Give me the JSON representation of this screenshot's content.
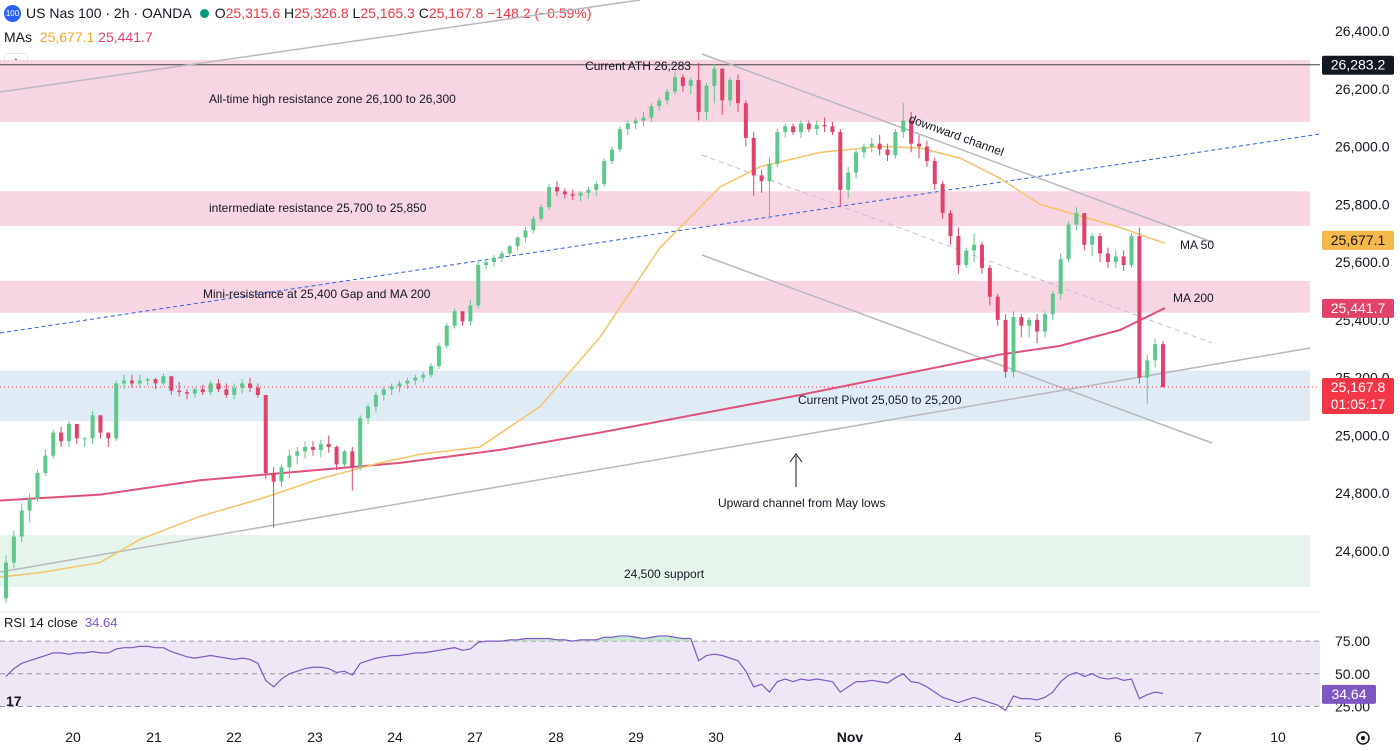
{
  "header": {
    "badge": "100",
    "symbol": "US Nas 100 · 2h · OANDA",
    "o_label": "O",
    "o_value": "25,315.6",
    "h_label": "H",
    "h_value": "25,326.8",
    "l_label": "L",
    "l_value": "25,165.3",
    "c_label": "C",
    "c_value": "25,167.8",
    "change": "−148.2 (−0.59%)",
    "mas_label": "MAs",
    "ma50_value": "25,677.1",
    "ma200_value": "25,441.7",
    "collapse_icon": "chevron-up-icon"
  },
  "rsi_header": {
    "label": "RSI 14 close",
    "value": "34.64"
  },
  "colors": {
    "up": "#26a69a",
    "up_body": "#5ec88c",
    "down": "#e0426a",
    "ma50": "#f5c469",
    "ma200": "#e0527a",
    "pink_zone": "#f7d5e2",
    "blue_zone": "#dfecf6",
    "green_zone": "#e6f5ec",
    "rsi": "#7e57c2",
    "rsi_band": "#ede7f6",
    "channel": "#b8b8be",
    "trend_blue": "#2f5fe0",
    "axis_text": "#131722"
  },
  "price_axis": {
    "ticks": [
      "26,400.0",
      "26,200.0",
      "26,000.0",
      "25,800.0",
      "25,600.0",
      "25,400.0",
      "25,200.0",
      "25,000.0",
      "24,800.0",
      "24,600.0"
    ]
  },
  "price_tags": [
    {
      "text": "26,283.2",
      "bg": "#131722",
      "fg": "#ffffff"
    },
    {
      "text": "25,677.1",
      "bg": "#f5b84a",
      "fg": "#131722"
    },
    {
      "text": "25,441.7",
      "bg": "#e0426a",
      "fg": "#ffffff"
    },
    {
      "text": "25,167.8",
      "bg": "#f23645",
      "fg": "#ffffff"
    },
    {
      "text": "01:05:17",
      "bg": "#f23645",
      "fg": "#ffffff"
    }
  ],
  "rsi_axis": {
    "ticks": [
      "75.00",
      "50.00",
      "25.00"
    ],
    "current": "34.64"
  },
  "time_axis": {
    "ticks": [
      "20",
      "21",
      "22",
      "23",
      "24",
      "27",
      "28",
      "29",
      "30",
      "Nov",
      "4",
      "5",
      "6",
      "7",
      "10"
    ],
    "settings_icon": "gear-icon",
    "logo": "tradingview-logo-icon"
  },
  "annotations": {
    "ath_line": "Current ATH 26,283",
    "ath_zone": "All-time high resistance zone 26,100 to 26,300",
    "intermediate_zone": "intermediate resistance 25,700 to 25,850",
    "mini_resistance": "Mini-resistance at 25,400 Gap and MA 200",
    "pivot_zone": "Current Pivot  25,050 to 25,200",
    "upward_channel": "Upward channel from May lows",
    "support_zone": "24,500 support",
    "downward_channel": "downward channel",
    "ma50_label": "MA 50",
    "ma200_label": "MA 200"
  },
  "chart_data": {
    "type": "candlestick",
    "title": "US Nas 100 · 2h · OANDA",
    "ylim": [
      24420,
      26470
    ],
    "rsi_ylim": [
      20,
      82
    ],
    "zones": [
      {
        "name": "All-time high resistance zone",
        "from": 26085,
        "to": 26300,
        "color": "pink"
      },
      {
        "name": "intermediate resistance",
        "from": 25725,
        "to": 25845,
        "color": "pink"
      },
      {
        "name": "Mini-resistance",
        "from": 25425,
        "to": 25535,
        "color": "pink"
      },
      {
        "name": "Current Pivot",
        "from": 25050,
        "to": 25225,
        "color": "blue"
      },
      {
        "name": "24,500 support",
        "from": 24475,
        "to": 24655,
        "color": "green"
      }
    ],
    "ath": 26283.2,
    "last_close": 25167.8,
    "ma50_last": 25677.1,
    "ma200_last": 25441.7,
    "rsi_last": 34.64,
    "candles": [
      [
        24436,
        24585,
        24420,
        24560
      ],
      [
        24560,
        24670,
        24540,
        24650
      ],
      [
        24650,
        24765,
        24630,
        24740
      ],
      [
        24740,
        24800,
        24700,
        24780
      ],
      [
        24780,
        24880,
        24770,
        24870
      ],
      [
        24870,
        24950,
        24860,
        24930
      ],
      [
        24930,
        25020,
        24920,
        25010
      ],
      [
        25010,
        25030,
        24960,
        24980
      ],
      [
        24980,
        25050,
        24960,
        25040
      ],
      [
        25040,
        25020,
        24970,
        24990
      ],
      [
        24990,
        24995,
        24960,
        24990
      ],
      [
        24990,
        25085,
        24970,
        25070
      ],
      [
        25070,
        25060,
        24990,
        25010
      ],
      [
        25010,
        25010,
        24960,
        24990
      ],
      [
        24990,
        25190,
        24980,
        25180
      ],
      [
        25180,
        25210,
        25160,
        25190
      ],
      [
        25190,
        25210,
        25165,
        25180
      ],
      [
        25180,
        25210,
        25165,
        25190
      ],
      [
        25190,
        25200,
        25175,
        25195
      ],
      [
        25195,
        25200,
        25160,
        25180
      ],
      [
        25180,
        25215,
        25175,
        25205
      ],
      [
        25205,
        25195,
        25140,
        25155
      ],
      [
        25155,
        25185,
        25135,
        25150
      ],
      [
        25150,
        25160,
        25125,
        25145
      ],
      [
        25145,
        25165,
        25130,
        25160
      ],
      [
        25160,
        25175,
        25140,
        25150
      ],
      [
        25150,
        25190,
        25140,
        25180
      ],
      [
        25180,
        25195,
        25150,
        25160
      ],
      [
        25160,
        25180,
        25130,
        25140
      ],
      [
        25140,
        25180,
        25125,
        25165
      ],
      [
        25165,
        25195,
        25145,
        25180
      ],
      [
        25180,
        25200,
        25150,
        25165
      ],
      [
        25165,
        25180,
        25130,
        25140
      ],
      [
        25140,
        25130,
        24850,
        24870
      ],
      [
        24870,
        24890,
        24680,
        24840
      ],
      [
        24840,
        24900,
        24820,
        24890
      ],
      [
        24890,
        24950,
        24850,
        24930
      ],
      [
        24930,
        24960,
        24900,
        24945
      ],
      [
        24945,
        24980,
        24920,
        24960
      ],
      [
        24960,
        24980,
        24930,
        24950
      ],
      [
        24950,
        24985,
        24925,
        24970
      ],
      [
        24970,
        25000,
        24940,
        24960
      ],
      [
        24960,
        24965,
        24880,
        24900
      ],
      [
        24900,
        24950,
        24890,
        24945
      ],
      [
        24945,
        24960,
        24810,
        24890
      ],
      [
        24890,
        25070,
        24880,
        25060
      ],
      [
        25060,
        25110,
        25040,
        25100
      ],
      [
        25100,
        25150,
        25080,
        25140
      ],
      [
        25140,
        25170,
        25120,
        25160
      ],
      [
        25160,
        25180,
        25140,
        25170
      ],
      [
        25170,
        25190,
        25150,
        25180
      ],
      [
        25180,
        25200,
        25160,
        25190
      ],
      [
        25190,
        25210,
        25175,
        25200
      ],
      [
        25200,
        25220,
        25185,
        25210
      ],
      [
        25210,
        25250,
        25200,
        25240
      ],
      [
        25240,
        25320,
        25230,
        25310
      ],
      [
        25310,
        25390,
        25300,
        25380
      ],
      [
        25380,
        25440,
        25370,
        25430
      ],
      [
        25430,
        25425,
        25380,
        25395
      ],
      [
        25395,
        25470,
        25380,
        25450
      ],
      [
        25450,
        25600,
        25440,
        25590
      ],
      [
        25590,
        25610,
        25575,
        25600
      ],
      [
        25600,
        25625,
        25585,
        25615
      ],
      [
        25615,
        25640,
        25600,
        25630
      ],
      [
        25630,
        25660,
        25620,
        25655
      ],
      [
        25655,
        25690,
        25640,
        25685
      ],
      [
        25685,
        25720,
        25670,
        25710
      ],
      [
        25710,
        25760,
        25700,
        25750
      ],
      [
        25750,
        25800,
        25740,
        25790
      ],
      [
        25790,
        25870,
        25780,
        25860
      ],
      [
        25860,
        25880,
        25830,
        25845
      ],
      [
        25845,
        25855,
        25820,
        25835
      ],
      [
        25835,
        25850,
        25815,
        25830
      ],
      [
        25830,
        25845,
        25810,
        25840
      ],
      [
        25840,
        25860,
        25820,
        25850
      ],
      [
        25850,
        25880,
        25830,
        25870
      ],
      [
        25870,
        25960,
        25860,
        25950
      ],
      [
        25950,
        26000,
        25940,
        25990
      ],
      [
        25990,
        26070,
        25980,
        26060
      ],
      [
        26060,
        26090,
        26040,
        26080
      ],
      [
        26080,
        26100,
        26060,
        26090
      ],
      [
        26090,
        26120,
        26070,
        26100
      ],
      [
        26100,
        26150,
        26085,
        26140
      ],
      [
        26140,
        26170,
        26125,
        26160
      ],
      [
        26160,
        26200,
        26145,
        26190
      ],
      [
        26190,
        26260,
        26180,
        26240
      ],
      [
        26240,
        26250,
        26190,
        26210
      ],
      [
        26210,
        26240,
        26180,
        26230
      ],
      [
        26230,
        26290,
        26090,
        26120
      ],
      [
        26120,
        26220,
        26090,
        26210
      ],
      [
        26210,
        26285,
        26150,
        26270
      ],
      [
        26270,
        26260,
        26110,
        26160
      ],
      [
        26160,
        26240,
        26140,
        26230
      ],
      [
        26230,
        26250,
        26120,
        26150
      ],
      [
        26150,
        26160,
        26000,
        26030
      ],
      [
        26030,
        26050,
        25830,
        25900
      ],
      [
        25900,
        25920,
        25840,
        25880
      ],
      [
        25880,
        25960,
        25750,
        25940
      ],
      [
        25940,
        26060,
        25930,
        26050
      ],
      [
        26050,
        26080,
        26030,
        26070
      ],
      [
        26070,
        26080,
        26040,
        26050
      ],
      [
        26050,
        26090,
        26030,
        26080
      ],
      [
        26080,
        26090,
        26050,
        26060
      ],
      [
        26060,
        26090,
        26040,
        26075
      ],
      [
        26075,
        26100,
        26050,
        26070
      ],
      [
        26070,
        26085,
        26040,
        26050
      ],
      [
        26050,
        26060,
        25790,
        25850
      ],
      [
        25850,
        25930,
        25820,
        25910
      ],
      [
        25910,
        25990,
        25890,
        25980
      ],
      [
        25980,
        26010,
        25960,
        26000
      ],
      [
        26000,
        26030,
        25980,
        26010
      ],
      [
        26010,
        26040,
        25970,
        25990
      ],
      [
        25990,
        26010,
        25950,
        25970
      ],
      [
        25970,
        26060,
        25960,
        26050
      ],
      [
        26050,
        26150,
        26030,
        26090
      ],
      [
        26090,
        26120,
        25980,
        26010
      ],
      [
        26010,
        26040,
        25960,
        26000
      ],
      [
        26000,
        26020,
        25930,
        25950
      ],
      [
        25950,
        25960,
        25850,
        25870
      ],
      [
        25870,
        25880,
        25750,
        25770
      ],
      [
        25770,
        25780,
        25660,
        25690
      ],
      [
        25690,
        25720,
        25560,
        25590
      ],
      [
        25590,
        25650,
        25580,
        25640
      ],
      [
        25640,
        25700,
        25600,
        25660
      ],
      [
        25660,
        25670,
        25560,
        25580
      ],
      [
        25580,
        25590,
        25450,
        25480
      ],
      [
        25480,
        25490,
        25380,
        25400
      ],
      [
        25400,
        25420,
        25200,
        25220
      ],
      [
        25220,
        25430,
        25200,
        25410
      ],
      [
        25410,
        25420,
        25340,
        25380
      ],
      [
        25380,
        25410,
        25340,
        25400
      ],
      [
        25400,
        25420,
        25320,
        25360
      ],
      [
        25360,
        25430,
        25340,
        25420
      ],
      [
        25420,
        25500,
        25400,
        25490
      ],
      [
        25490,
        25630,
        25470,
        25610
      ],
      [
        25610,
        25740,
        25600,
        25730
      ],
      [
        25730,
        25790,
        25710,
        25770
      ],
      [
        25770,
        25760,
        25640,
        25660
      ],
      [
        25660,
        25700,
        25620,
        25690
      ],
      [
        25690,
        25700,
        25600,
        25630
      ],
      [
        25630,
        25650,
        25580,
        25600
      ],
      [
        25600,
        25640,
        25580,
        25620
      ],
      [
        25620,
        25640,
        25570,
        25590
      ],
      [
        25590,
        25700,
        25580,
        25690
      ],
      [
        25690,
        25720,
        25180,
        25200
      ],
      [
        25200,
        25280,
        25110,
        25260
      ],
      [
        25260,
        25335,
        25235,
        25316
      ],
      [
        25316,
        25327,
        25165,
        25168
      ]
    ],
    "rsi": [
      48,
      54,
      58,
      60,
      62,
      64,
      66,
      66,
      65,
      66,
      66,
      67,
      66,
      66,
      69,
      70,
      70,
      71,
      71,
      70,
      70,
      67,
      65,
      63,
      62,
      63,
      64,
      63,
      62,
      61,
      62,
      61,
      58,
      45,
      40,
      46,
      50,
      52,
      54,
      55,
      55,
      54,
      51,
      52,
      49,
      58,
      60,
      62,
      63,
      64,
      64,
      65,
      66,
      66,
      67,
      68,
      69,
      70,
      68,
      69,
      74,
      75,
      75,
      75,
      76,
      76,
      77,
      77,
      77,
      77,
      76,
      76,
      75,
      76,
      76,
      76,
      78,
      78,
      79,
      79,
      78,
      77,
      78,
      79,
      79,
      78,
      77,
      77,
      60,
      64,
      65,
      64,
      62,
      60,
      52,
      40,
      42,
      36,
      44,
      46,
      44,
      46,
      45,
      46,
      45,
      44,
      36,
      40,
      44,
      44,
      45,
      44,
      43,
      47,
      50,
      44,
      43,
      40,
      36,
      32,
      30,
      28,
      30,
      32,
      30,
      28,
      26,
      22,
      33,
      31,
      31,
      30,
      32,
      36,
      44,
      49,
      51,
      48,
      50,
      47,
      46,
      47,
      45,
      46,
      31,
      34,
      36,
      35
    ],
    "ma50": [
      [
        0,
        24510
      ],
      [
        40,
        24525
      ],
      [
        100,
        24560
      ],
      [
        140,
        24640
      ],
      [
        200,
        24720
      ],
      [
        260,
        24780
      ],
      [
        320,
        24850
      ],
      [
        380,
        24905
      ],
      [
        420,
        24935
      ],
      [
        480,
        24960
      ],
      [
        540,
        25100
      ],
      [
        600,
        25340
      ],
      [
        660,
        25650
      ],
      [
        720,
        25860
      ],
      [
        760,
        25930
      ],
      [
        820,
        25980
      ],
      [
        880,
        26000
      ],
      [
        920,
        25995
      ],
      [
        960,
        25960
      ],
      [
        1000,
        25890
      ],
      [
        1040,
        25800
      ],
      [
        1080,
        25760
      ],
      [
        1120,
        25720
      ],
      [
        1165,
        25665
      ]
    ],
    "ma200": [
      [
        0,
        24775
      ],
      [
        100,
        24795
      ],
      [
        200,
        24845
      ],
      [
        300,
        24875
      ],
      [
        400,
        24905
      ],
      [
        500,
        24950
      ],
      [
        600,
        25010
      ],
      [
        700,
        25075
      ],
      [
        800,
        25140
      ],
      [
        900,
        25210
      ],
      [
        1000,
        25280
      ],
      [
        1060,
        25310
      ],
      [
        1120,
        25365
      ],
      [
        1165,
        25441
      ]
    ]
  }
}
